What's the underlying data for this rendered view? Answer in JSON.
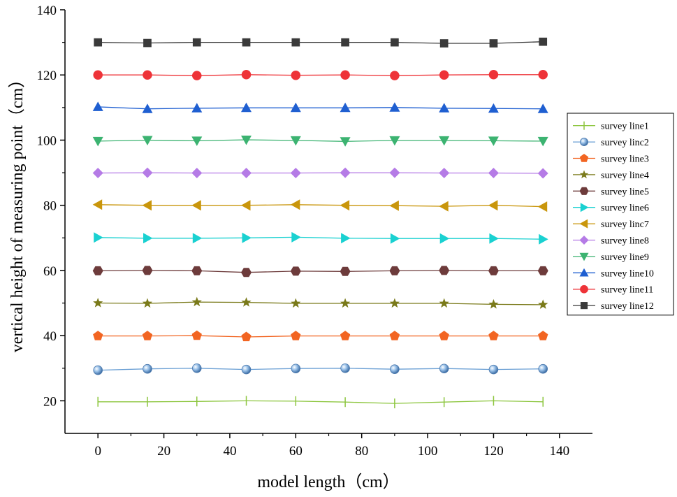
{
  "chart_data": {
    "type": "line",
    "title": "",
    "xlabel": "model length（cm）",
    "ylabel": "vertical height of measuring point（cm）",
    "xlim": [
      -10,
      150
    ],
    "ylim": [
      10,
      140
    ],
    "x_ticks": [
      0,
      20,
      40,
      60,
      80,
      100,
      120,
      140
    ],
    "y_ticks": [
      20,
      40,
      60,
      80,
      100,
      120,
      140
    ],
    "x_tick_labels": [
      "0",
      "20",
      "40",
      "60",
      "80",
      "100",
      "120",
      "140"
    ],
    "y_tick_labels": [
      "20",
      "40",
      "60",
      "80",
      "100",
      "120",
      "140"
    ],
    "legend_position": "right",
    "x": [
      0,
      15,
      30,
      45,
      60,
      75,
      90,
      105,
      120,
      135
    ],
    "series": [
      {
        "name": "survey line1",
        "marker": "vline",
        "color": "#8dc63f",
        "values": [
          19.7,
          19.7,
          19.8,
          20.0,
          19.9,
          19.6,
          19.2,
          19.6,
          20.0,
          19.7
        ]
      },
      {
        "name": "survey linc2",
        "marker": "sphere",
        "color": "#6a9fd4",
        "values": [
          29.4,
          29.8,
          30.0,
          29.6,
          29.9,
          30.0,
          29.7,
          29.9,
          29.6,
          29.8
        ]
      },
      {
        "name": "survey line3",
        "marker": "pentagon",
        "color": "#f26522",
        "values": [
          39.9,
          39.9,
          40.0,
          39.6,
          39.9,
          39.9,
          39.9,
          39.9,
          39.9,
          39.9
        ]
      },
      {
        "name": "survey line4",
        "marker": "star",
        "color": "#7a7a1a",
        "values": [
          50.0,
          49.9,
          50.3,
          50.2,
          49.9,
          49.9,
          49.9,
          49.9,
          49.6,
          49.5
        ]
      },
      {
        "name": "survey line5",
        "marker": "hexagon",
        "color": "#6d3b3b",
        "values": [
          59.9,
          60.0,
          59.9,
          59.4,
          59.8,
          59.7,
          59.9,
          60.0,
          59.9,
          59.9
        ]
      },
      {
        "name": "survey line6",
        "marker": "triright",
        "color": "#1ad1d1",
        "values": [
          70.1,
          69.9,
          69.9,
          70.0,
          70.2,
          69.9,
          69.8,
          69.8,
          69.8,
          69.6
        ]
      },
      {
        "name": "survey linc7",
        "marker": "trileft",
        "color": "#c9960c",
        "values": [
          80.2,
          80.0,
          80.0,
          80.0,
          80.2,
          80.0,
          79.9,
          79.7,
          80.0,
          79.6
        ]
      },
      {
        "name": "survey line8",
        "marker": "diamond",
        "color": "#b57be6",
        "values": [
          89.9,
          90.0,
          89.9,
          89.9,
          89.9,
          90.0,
          90.0,
          89.9,
          89.9,
          89.8
        ]
      },
      {
        "name": "survey line9",
        "marker": "tridown",
        "color": "#3cb371",
        "values": [
          99.7,
          100.0,
          99.8,
          100.1,
          99.9,
          99.6,
          99.9,
          99.9,
          99.8,
          99.7
        ]
      },
      {
        "name": "survey line10",
        "marker": "triup",
        "color": "#1f5fd1",
        "values": [
          110.2,
          109.6,
          109.8,
          109.9,
          109.9,
          109.9,
          110.0,
          109.8,
          109.7,
          109.6
        ]
      },
      {
        "name": "survey line11",
        "marker": "circle",
        "color": "#ee3338",
        "values": [
          120.0,
          120.0,
          119.8,
          120.1,
          119.9,
          120.0,
          119.8,
          120.0,
          120.1,
          120.1
        ]
      },
      {
        "name": "survey line12",
        "marker": "square",
        "color": "#3a3a3a",
        "values": [
          130.0,
          129.8,
          130.0,
          130.0,
          130.0,
          130.0,
          130.0,
          129.7,
          129.7,
          130.2
        ]
      }
    ]
  }
}
